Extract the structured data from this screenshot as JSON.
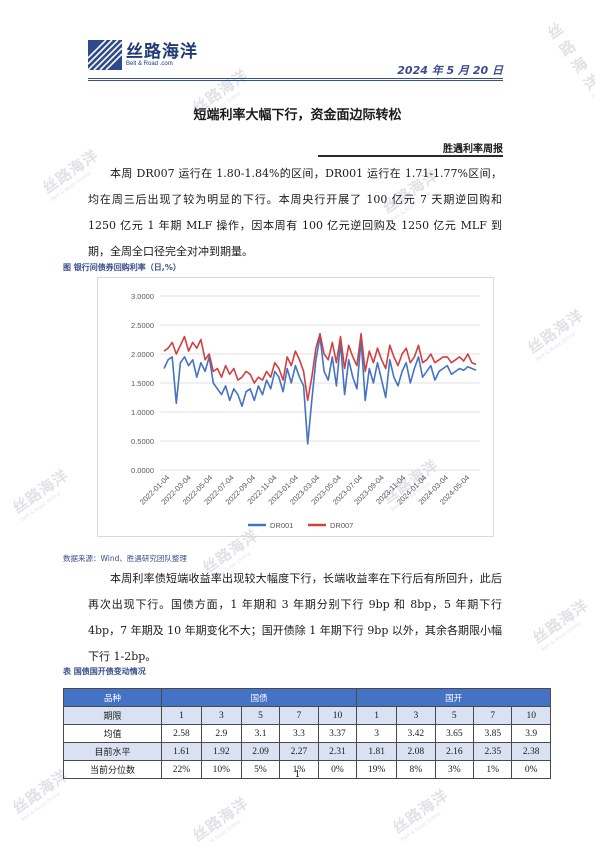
{
  "header": {
    "logo_zh": "丝路海洋",
    "logo_en": "Belt & Road .com",
    "date": "2024 年 5 月 20 日"
  },
  "title": "短端利率大幅下行，资金面边际转松",
  "subtitle": "胜遇利率周报",
  "paragraphs": [
    "本周 DR007 运行在 1.80-1.84%的区间，DR001 运行在 1.71-1.77%区间，均在周三后出现了较为明显的下行。本周央行开展了 100 亿元 7 天期逆回购和 1250 亿元 1 年期 MLF 操作，因本周有 100 亿元逆回购及 1250 亿元 MLF 到期，全周全口径完全对冲到期量。",
    "本周利率债短端收益率出现较大幅度下行，长端收益率在下行后有所回升，此后再次出现下行。国债方面，1 年期和 3 年期分别下行 9bp 和 8bp，5 年期下行 4bp，7 年期及 10 年期变化不大；国开债除 1 年期下行 9bp 以外，其余各期限小幅下行 1-2bp。"
  ],
  "figure_caption": "图    银行间债券回购利率（日,%）",
  "source": "数据来源：Wind、胜遇研究团队整理",
  "chart_data": {
    "type": "line",
    "x_ticks": [
      "2022-01-04",
      "2022-03-04",
      "2022-05-04",
      "2022-07-04",
      "2022-09-04",
      "2022-11-04",
      "2023-01-04",
      "2023-03-04",
      "2023-05-04",
      "2023-07-04",
      "2023-09-04",
      "2023-11-04",
      "2024-01-04",
      "2024-03-04",
      "2024-05-04"
    ],
    "y_ticks": [
      "0.0000",
      "0.5000",
      "1.0000",
      "1.5000",
      "2.0000",
      "2.5000",
      "3.0000"
    ],
    "ylim": [
      0,
      3
    ],
    "legend_position": "bottom",
    "series": [
      {
        "name": "DR001",
        "color": "#4472c4",
        "values": [
          1.75,
          1.9,
          1.95,
          1.15,
          1.85,
          1.95,
          1.8,
          1.9,
          1.6,
          1.85,
          1.7,
          1.95,
          1.5,
          1.4,
          1.3,
          1.45,
          1.2,
          1.4,
          1.3,
          1.1,
          1.35,
          1.4,
          1.2,
          1.45,
          1.3,
          1.55,
          1.4,
          1.7,
          1.6,
          1.35,
          1.75,
          1.5,
          1.8,
          1.6,
          1.45,
          0.45,
          1.2,
          1.9,
          2.3,
          1.7,
          1.55,
          1.95,
          1.45,
          2.2,
          1.3,
          1.9,
          1.6,
          1.4,
          2.25,
          1.2,
          1.75,
          1.5,
          1.85,
          1.55,
          1.25,
          1.9,
          1.6,
          1.45,
          1.7,
          1.85,
          1.5,
          1.75,
          1.95,
          1.6,
          1.7,
          1.8,
          1.55,
          1.7,
          1.75,
          1.8,
          1.65,
          1.7,
          1.75,
          1.72,
          1.78,
          1.75,
          1.72
        ]
      },
      {
        "name": "DR007",
        "color": "#d04040",
        "values": [
          2.05,
          2.1,
          2.2,
          2.0,
          2.15,
          2.3,
          2.05,
          2.2,
          2.1,
          2.25,
          1.9,
          2.0,
          1.7,
          1.75,
          1.6,
          1.8,
          1.65,
          1.75,
          1.55,
          1.6,
          1.7,
          1.65,
          1.5,
          1.6,
          1.55,
          1.7,
          1.6,
          1.85,
          1.75,
          1.55,
          1.95,
          1.8,
          2.05,
          1.9,
          1.7,
          1.2,
          1.6,
          2.1,
          2.35,
          2.0,
          1.9,
          2.2,
          1.85,
          2.3,
          1.75,
          2.15,
          1.95,
          1.8,
          2.35,
          1.7,
          2.05,
          1.85,
          2.1,
          1.9,
          1.75,
          2.15,
          1.95,
          1.8,
          2.0,
          2.1,
          1.85,
          1.95,
          2.15,
          1.85,
          1.9,
          2.0,
          1.85,
          1.9,
          1.95,
          1.95,
          1.85,
          1.9,
          1.95,
          1.88,
          2.0,
          1.85,
          1.82
        ]
      }
    ]
  },
  "table_caption": "表    国债国开债变动情况",
  "table": {
    "head": [
      "品种",
      "国债",
      "国开"
    ],
    "period_label": "期限",
    "periods": [
      "1",
      "3",
      "5",
      "7",
      "10",
      "1",
      "3",
      "5",
      "7",
      "10"
    ],
    "rows": [
      {
        "label": "均值",
        "values": [
          "2.58",
          "2.9",
          "3.1",
          "3.3",
          "3.37",
          "3",
          "3.42",
          "3.65",
          "3.85",
          "3.9"
        ]
      },
      {
        "label": "目前水平",
        "values": [
          "1.61",
          "1.92",
          "2.09",
          "2.27",
          "2.31",
          "1.81",
          "2.08",
          "2.16",
          "2.35",
          "2.38"
        ]
      },
      {
        "label": "当前分位数",
        "values": [
          "22%",
          "10%",
          "5%",
          "1%",
          "0%",
          "19%",
          "8%",
          "3%",
          "1%",
          "0%"
        ]
      }
    ]
  },
  "page_number": "1",
  "watermark": {
    "zh": "丝路海洋",
    "en": "Belt & Road Online"
  }
}
